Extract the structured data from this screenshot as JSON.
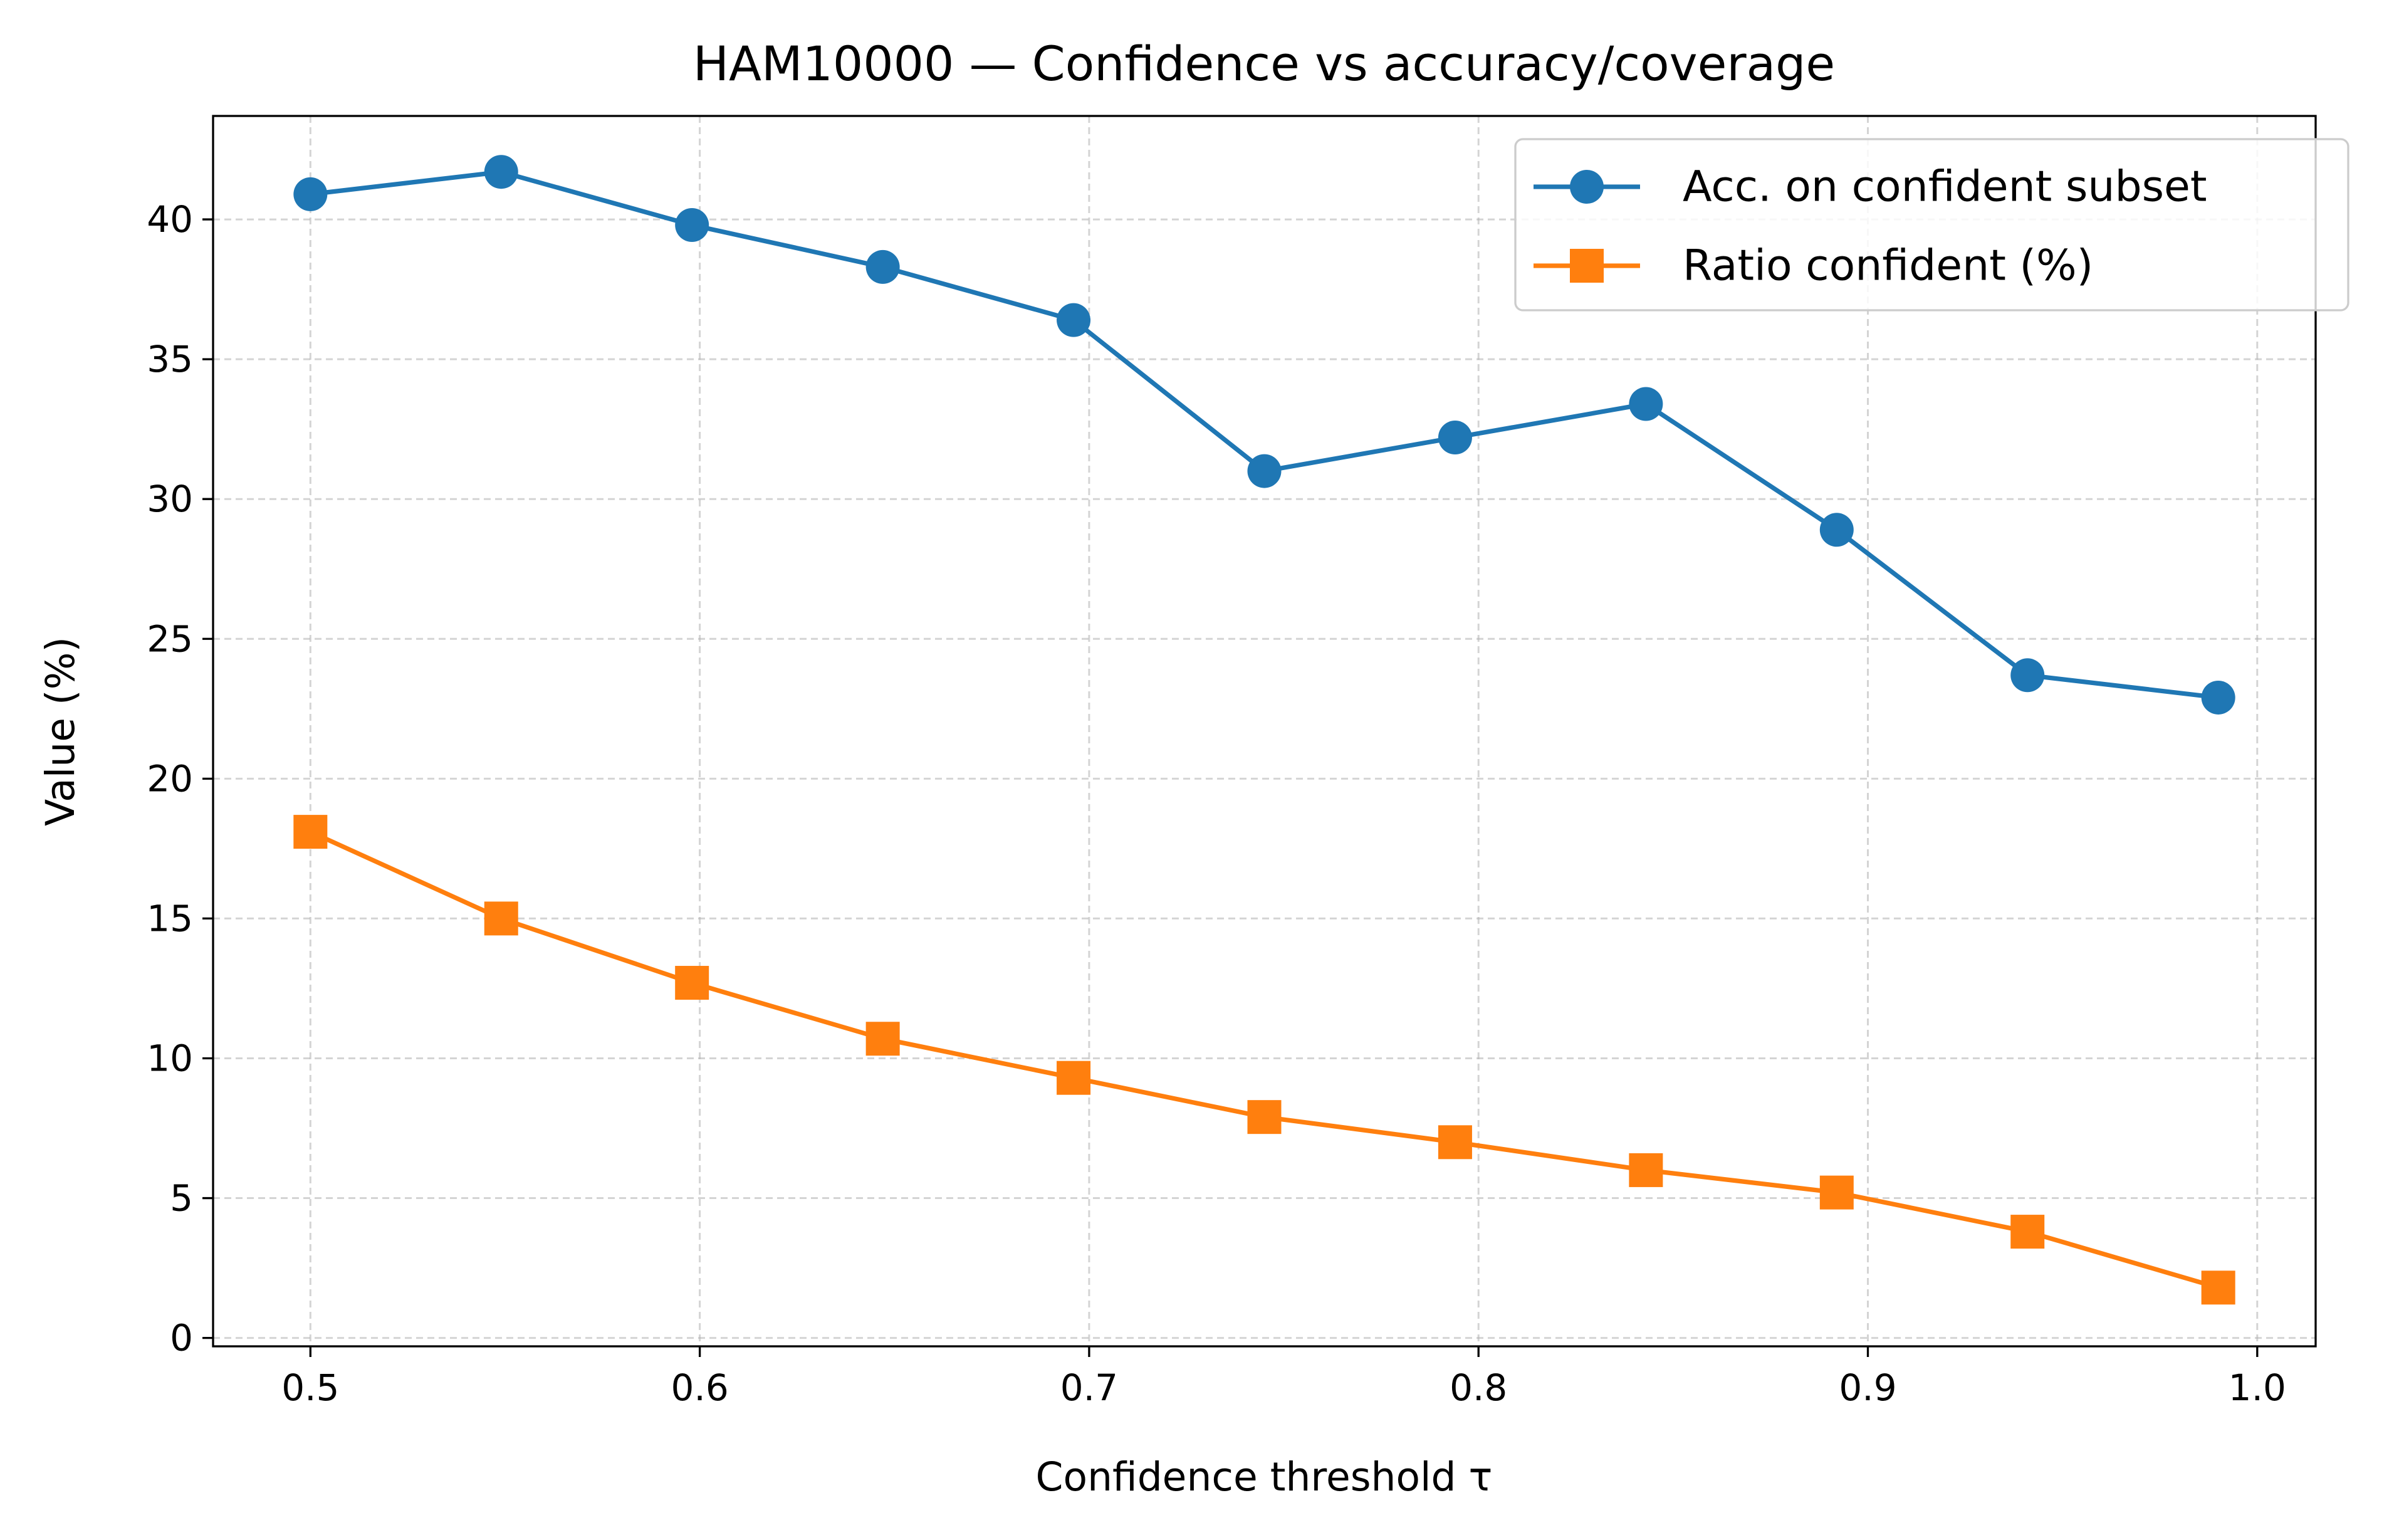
{
  "chart_data": {
    "type": "line",
    "title": "HAM10000 — Confidence vs accuracy/coverage",
    "xlabel": "Confidence threshold τ",
    "ylabel": "Value (%)",
    "xlim": [
      0.475,
      1.015
    ],
    "ylim": [
      -0.3,
      43.7
    ],
    "xticks": [
      0.5,
      0.6,
      0.7,
      0.8,
      0.9,
      1.0
    ],
    "xtick_labels": [
      "0.5",
      "0.6",
      "0.7",
      "0.8",
      "0.9",
      "1.0"
    ],
    "yticks": [
      0,
      5,
      10,
      15,
      20,
      25,
      30,
      35,
      40
    ],
    "ytick_labels": [
      "0",
      "5",
      "10",
      "15",
      "20",
      "25",
      "30",
      "35",
      "40"
    ],
    "grid": true,
    "legend_position": "top-right",
    "x": [
      0.5,
      0.549,
      0.598,
      0.647,
      0.696,
      0.745,
      0.794,
      0.843,
      0.892,
      0.941,
      0.99
    ],
    "series": [
      {
        "name": "Acc. on confident subset",
        "color": "#1f77b4",
        "marker": "circle",
        "values": [
          40.9,
          41.7,
          39.8,
          38.3,
          36.4,
          31.0,
          32.2,
          33.4,
          28.9,
          23.7,
          22.9
        ]
      },
      {
        "name": "Ratio confident (%)",
        "color": "#ff7f0e",
        "marker": "square",
        "values": [
          18.1,
          15.0,
          12.7,
          10.7,
          9.3,
          7.9,
          7.0,
          6.0,
          5.2,
          3.8,
          1.8
        ]
      }
    ]
  }
}
